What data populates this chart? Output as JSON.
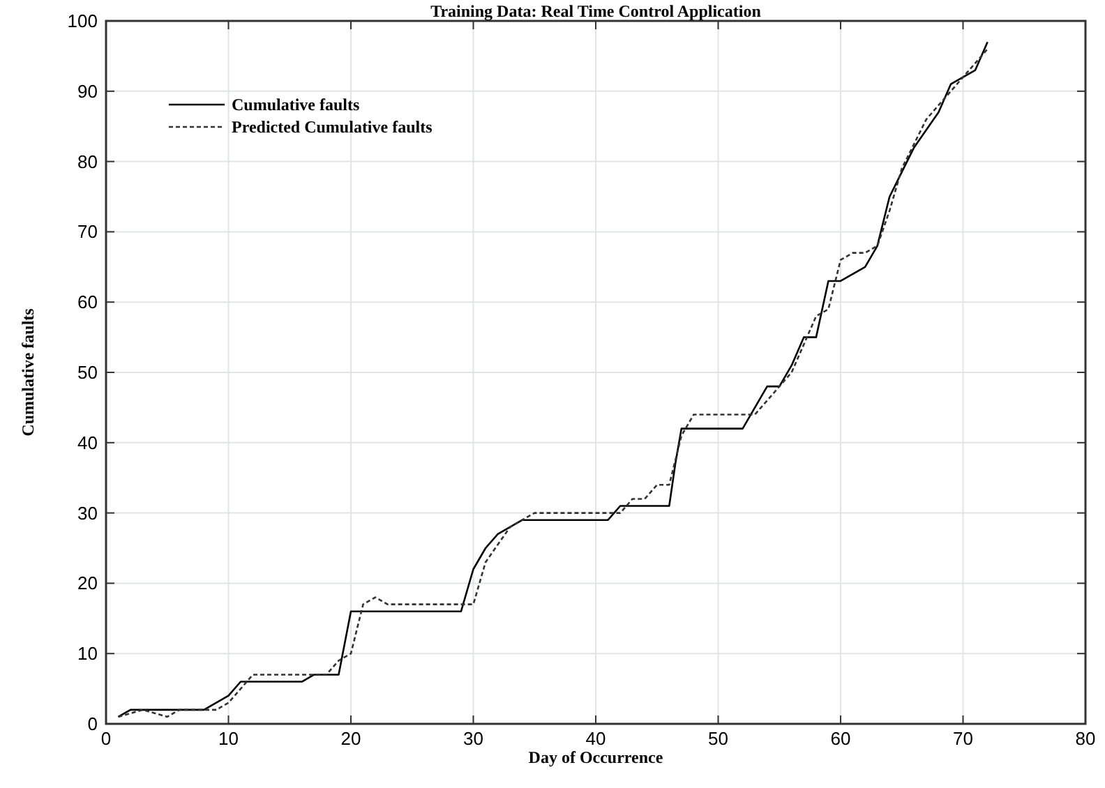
{
  "chart_data": {
    "type": "line",
    "title": "Training Data: Real Time Control Application",
    "xlabel": "Day of Occurrence",
    "ylabel": "Cumulative faults",
    "xlim": [
      0,
      80
    ],
    "xticks": [
      0,
      10,
      20,
      30,
      40,
      50,
      60,
      70,
      80
    ],
    "ylim": [
      0,
      100
    ],
    "yticks": [
      0,
      10,
      20,
      30,
      40,
      50,
      60,
      70,
      80,
      90,
      100
    ],
    "grid": true,
    "legend": "top left",
    "series": [
      {
        "name": "Cumulative faults",
        "color": "#000000",
        "line_style": "solid",
        "x": [
          1,
          2,
          8,
          10,
          11,
          16,
          17,
          19,
          20,
          29,
          30,
          31,
          32,
          34,
          41,
          42,
          46,
          46.5,
          47,
          52,
          54,
          55,
          56,
          57,
          58,
          59,
          60,
          62,
          63,
          64,
          66,
          68,
          69,
          71,
          72
        ],
        "values": [
          1,
          2,
          2,
          4,
          6,
          6,
          7,
          7,
          16,
          16,
          22,
          25,
          27,
          29,
          29,
          31,
          31,
          37,
          42,
          42,
          48,
          48,
          51,
          55,
          55,
          63,
          63,
          65,
          68,
          75,
          82,
          87,
          91,
          93,
          97
        ]
      },
      {
        "name": "Predicted Cumulative faults",
        "color": "#333333",
        "line_style": "dashed",
        "x": [
          1,
          3,
          5,
          6,
          8,
          9,
          10,
          11,
          12,
          18,
          19,
          20,
          21,
          22,
          23,
          30,
          31,
          33,
          35,
          42,
          43,
          44,
          45,
          46,
          47,
          48,
          53,
          54,
          56,
          57,
          58,
          59,
          60,
          61,
          62,
          63,
          64,
          65,
          67,
          68,
          70,
          72
        ],
        "values": [
          1,
          2,
          1,
          2,
          2,
          2,
          3,
          5,
          7,
          7,
          9,
          10,
          17,
          18,
          17,
          17,
          23,
          28,
          30,
          30,
          32,
          32,
          34,
          34,
          41,
          44,
          44,
          46,
          50,
          54,
          58,
          59,
          66,
          67,
          67,
          68,
          73,
          79,
          86,
          88,
          92,
          96
        ]
      }
    ]
  }
}
